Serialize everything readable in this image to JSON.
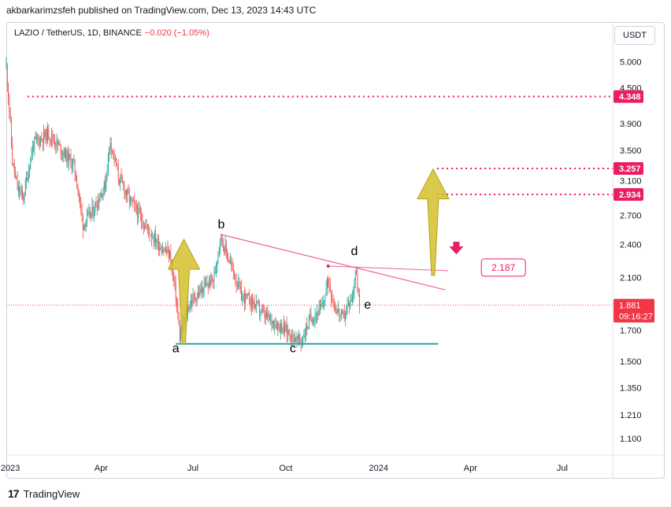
{
  "header": {
    "publisher": "akbarkarimzsfeh published on TradingView.com, Dec 13, 2023 14:43 UTC"
  },
  "legend": {
    "symbol": "LAZIO / TetherUS, 1D, BINANCE",
    "change": "−0.020 (−1.05%)"
  },
  "currency_button": "USDT",
  "footer": {
    "logo": "17",
    "brand": "TradingView"
  },
  "colors": {
    "up": "#26a69a",
    "down": "#ef5350",
    "accent": "#e91e63",
    "target": "#d4c02b",
    "support": "#26a69a"
  },
  "chart_data": {
    "type": "candlestick",
    "scale": "log",
    "ylim": [
      1.03,
      5.3
    ],
    "y_ticks": [
      "5.000",
      "4.500",
      "3.900",
      "3.500",
      "3.100",
      "2.700",
      "2.400",
      "2.100",
      "1.700",
      "1.500",
      "1.350",
      "1.210",
      "1.100"
    ],
    "x_ticks": [
      "2023",
      "Apr",
      "Jul",
      "Oct",
      "2024",
      "Apr",
      "Jul"
    ],
    "x_tick_dates": [
      "2023-01-01",
      "2023-04-01",
      "2023-07-01",
      "2023-10-01",
      "2024-01-01",
      "2024-04-01",
      "2024-07-01"
    ],
    "x_range": [
      "2022-12-28",
      "2024-08-20"
    ],
    "price_anchors": [
      [
        "2022-12-28",
        4.9
      ],
      [
        "2023-01-03",
        3.35
      ],
      [
        "2023-01-08",
        3.0
      ],
      [
        "2023-01-14",
        2.9
      ],
      [
        "2023-01-24",
        3.6
      ],
      [
        "2023-02-08",
        3.75
      ],
      [
        "2023-02-24",
        3.45
      ],
      [
        "2023-03-05",
        3.3
      ],
      [
        "2023-03-14",
        2.6
      ],
      [
        "2023-03-24",
        2.75
      ],
      [
        "2023-04-05",
        3.05
      ],
      [
        "2023-04-10",
        3.65
      ],
      [
        "2023-04-18",
        3.15
      ],
      [
        "2023-04-28",
        2.9
      ],
      [
        "2023-05-14",
        2.6
      ],
      [
        "2023-05-28",
        2.4
      ],
      [
        "2023-06-08",
        2.3
      ],
      [
        "2023-06-14",
        1.95
      ],
      [
        "2023-06-18",
        1.65
      ],
      [
        "2023-06-28",
        1.9
      ],
      [
        "2023-07-10",
        2.0
      ],
      [
        "2023-07-22",
        2.1
      ],
      [
        "2023-07-28",
        2.48
      ],
      [
        "2023-08-08",
        2.2
      ],
      [
        "2023-08-18",
        1.95
      ],
      [
        "2023-08-30",
        1.9
      ],
      [
        "2023-09-10",
        1.8
      ],
      [
        "2023-09-28",
        1.72
      ],
      [
        "2023-10-08",
        1.66
      ],
      [
        "2023-10-16",
        1.62
      ],
      [
        "2023-10-25",
        1.78
      ],
      [
        "2023-11-06",
        1.86
      ],
      [
        "2023-11-12",
        2.08
      ],
      [
        "2023-11-18",
        1.88
      ],
      [
        "2023-11-26",
        1.78
      ],
      [
        "2023-12-06",
        1.95
      ],
      [
        "2023-12-09",
        2.17
      ],
      [
        "2023-12-13",
        1.881
      ]
    ],
    "last_price": {
      "value": 1.881,
      "label": "1.881",
      "countdown": "09:16:27",
      "date": "2023-12-13"
    },
    "levels": [
      {
        "label": "4.348",
        "value": 4.348,
        "from": "2023-01-18"
      },
      {
        "label": "3.257",
        "value": 3.257,
        "from": "2024-02-28"
      },
      {
        "label": "2.934",
        "value": 2.934,
        "from": "2024-02-28"
      }
    ],
    "target_label": {
      "label": "2.187",
      "value": 2.187
    },
    "target_line": {
      "from": {
        "date": "2023-11-12",
        "value": 2.2
      },
      "to": {
        "date": "2024-03-10",
        "value": 2.16
      }
    },
    "triangle_resistance": {
      "from": {
        "date": "2023-07-28",
        "value": 2.5
      },
      "to": {
        "date": "2024-03-07",
        "value": 2.0
      }
    },
    "triangle_support": {
      "from": {
        "date": "2023-06-14",
        "value": 1.61
      },
      "to": {
        "date": "2024-02-29",
        "value": 1.61
      }
    },
    "wave_labels": [
      {
        "text": "a",
        "date": "2023-06-14",
        "value": 1.555
      },
      {
        "text": "b",
        "date": "2023-07-29",
        "value": 2.56
      },
      {
        "text": "c",
        "date": "2023-10-08",
        "value": 1.555
      },
      {
        "text": "d",
        "date": "2023-12-08",
        "value": 2.3
      },
      {
        "text": "e",
        "date": "2023-12-21",
        "value": 1.855
      }
    ],
    "arrows": [
      {
        "direction": "up",
        "date": "2023-06-22",
        "from": 1.61,
        "to": 2.45
      },
      {
        "direction": "up",
        "date": "2024-02-24",
        "from": 2.12,
        "to": 3.25
      }
    ],
    "down_marker": {
      "date": "2024-03-18",
      "value": 2.35
    }
  }
}
